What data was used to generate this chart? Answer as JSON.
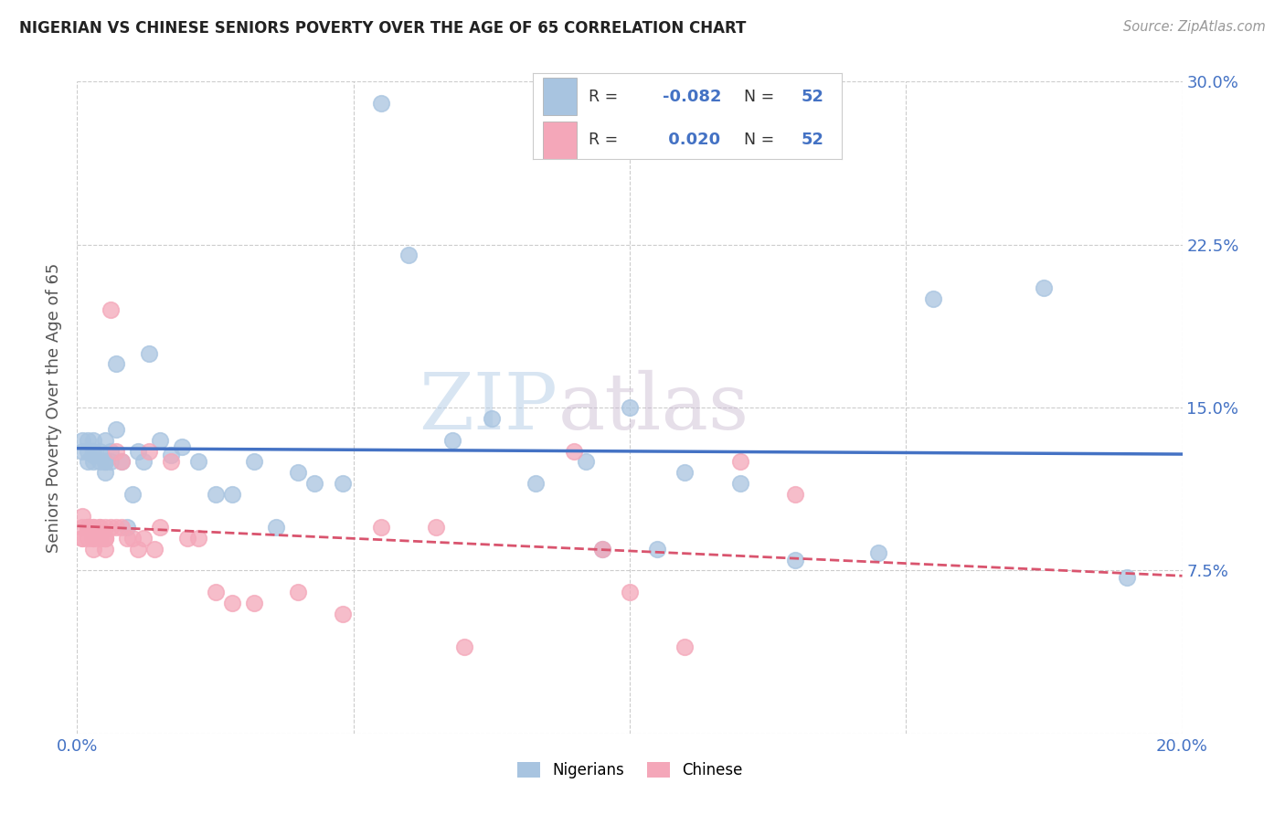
{
  "title": "NIGERIAN VS CHINESE SENIORS POVERTY OVER THE AGE OF 65 CORRELATION CHART",
  "source": "Source: ZipAtlas.com",
  "ylabel": "Seniors Poverty Over the Age of 65",
  "xlim": [
    0.0,
    0.2
  ],
  "ylim": [
    0.0,
    0.3
  ],
  "xticks": [
    0.0,
    0.05,
    0.1,
    0.15,
    0.2
  ],
  "xtick_labels": [
    "0.0%",
    "",
    "",
    "",
    "20.0%"
  ],
  "yticks": [
    0.0,
    0.075,
    0.15,
    0.225,
    0.3
  ],
  "ytick_labels_right": [
    "",
    "7.5%",
    "15.0%",
    "22.5%",
    "30.0%"
  ],
  "nigerian_color": "#a8c4e0",
  "chinese_color": "#f4a7b9",
  "nigerian_line_color": "#4472c4",
  "chinese_line_color": "#d9546e",
  "nigerian_R": -0.082,
  "nigerian_N": 52,
  "chinese_R": 0.02,
  "chinese_N": 52,
  "watermark_zip": "ZIP",
  "watermark_atlas": "atlas",
  "background_color": "#ffffff",
  "grid_color": "#cccccc",
  "nigerian_x": [
    0.001,
    0.001,
    0.002,
    0.002,
    0.002,
    0.003,
    0.003,
    0.003,
    0.003,
    0.004,
    0.004,
    0.005,
    0.005,
    0.005,
    0.005,
    0.006,
    0.006,
    0.007,
    0.007,
    0.008,
    0.009,
    0.01,
    0.011,
    0.012,
    0.013,
    0.015,
    0.017,
    0.019,
    0.022,
    0.025,
    0.028,
    0.032,
    0.036,
    0.04,
    0.043,
    0.048,
    0.055,
    0.06,
    0.068,
    0.075,
    0.083,
    0.092,
    0.1,
    0.11,
    0.12,
    0.095,
    0.13,
    0.105,
    0.145,
    0.155,
    0.175,
    0.19
  ],
  "nigerian_y": [
    0.13,
    0.135,
    0.125,
    0.13,
    0.135,
    0.125,
    0.128,
    0.135,
    0.13,
    0.125,
    0.13,
    0.12,
    0.125,
    0.135,
    0.125,
    0.125,
    0.13,
    0.17,
    0.14,
    0.125,
    0.095,
    0.11,
    0.13,
    0.125,
    0.175,
    0.135,
    0.128,
    0.132,
    0.125,
    0.11,
    0.11,
    0.125,
    0.095,
    0.12,
    0.115,
    0.115,
    0.29,
    0.22,
    0.135,
    0.145,
    0.115,
    0.125,
    0.15,
    0.12,
    0.115,
    0.085,
    0.08,
    0.085,
    0.083,
    0.2,
    0.205,
    0.072
  ],
  "chinese_x": [
    0.001,
    0.001,
    0.001,
    0.001,
    0.002,
    0.002,
    0.002,
    0.002,
    0.003,
    0.003,
    0.003,
    0.003,
    0.003,
    0.004,
    0.004,
    0.004,
    0.004,
    0.005,
    0.005,
    0.005,
    0.005,
    0.005,
    0.006,
    0.006,
    0.007,
    0.007,
    0.008,
    0.008,
    0.009,
    0.01,
    0.011,
    0.012,
    0.013,
    0.014,
    0.015,
    0.017,
    0.02,
    0.022,
    0.025,
    0.028,
    0.032,
    0.04,
    0.048,
    0.055,
    0.065,
    0.07,
    0.09,
    0.095,
    0.1,
    0.11,
    0.12,
    0.13
  ],
  "chinese_y": [
    0.1,
    0.095,
    0.09,
    0.09,
    0.095,
    0.095,
    0.09,
    0.095,
    0.095,
    0.09,
    0.09,
    0.085,
    0.095,
    0.095,
    0.09,
    0.09,
    0.095,
    0.09,
    0.09,
    0.085,
    0.095,
    0.09,
    0.195,
    0.095,
    0.13,
    0.095,
    0.095,
    0.125,
    0.09,
    0.09,
    0.085,
    0.09,
    0.13,
    0.085,
    0.095,
    0.125,
    0.09,
    0.09,
    0.065,
    0.06,
    0.06,
    0.065,
    0.055,
    0.095,
    0.095,
    0.04,
    0.13,
    0.085,
    0.065,
    0.04,
    0.125,
    0.11
  ]
}
